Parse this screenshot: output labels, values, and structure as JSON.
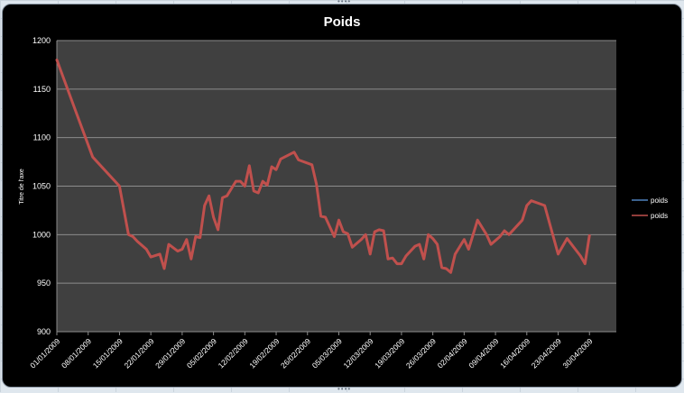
{
  "chart_data": {
    "type": "line",
    "title": "Poids",
    "ylabel": "Titre de l'axe",
    "xlabel": "",
    "ylim": [
      900,
      1200
    ],
    "yticks": [
      900,
      950,
      1000,
      1050,
      1100,
      1150,
      1200
    ],
    "xrange": [
      "01/01/2009",
      "06/05/2009"
    ],
    "xtick_labels": [
      "01/01/2009",
      "08/01/2009",
      "15/01/2009",
      "22/01/2009",
      "29/01/2009",
      "05/02/2009",
      "12/02/2009",
      "19/02/2009",
      "26/02/2009",
      "05/03/2009",
      "12/03/2009",
      "19/03/2009",
      "26/03/2009",
      "02/04/2009",
      "09/04/2009",
      "16/04/2009",
      "23/04/2009",
      "30/04/2009"
    ],
    "grid": true,
    "legend_position": "right",
    "series": [
      {
        "name": "poids",
        "color": "#4f81bd",
        "points": []
      },
      {
        "name": "poids",
        "color": "#c0504d",
        "points": [
          [
            "01/01/2009",
            1180
          ],
          [
            "05/01/2009",
            1130
          ],
          [
            "09/01/2009",
            1080
          ],
          [
            "15/01/2009",
            1050
          ],
          [
            "17/01/2009",
            1000
          ],
          [
            "18/01/2009",
            998
          ],
          [
            "19/01/2009",
            993
          ],
          [
            "21/01/2009",
            985
          ],
          [
            "22/01/2009",
            977
          ],
          [
            "24/01/2009",
            980
          ],
          [
            "25/01/2009",
            965
          ],
          [
            "26/01/2009",
            990
          ],
          [
            "28/01/2009",
            983
          ],
          [
            "29/01/2009",
            985
          ],
          [
            "30/01/2009",
            995
          ],
          [
            "31/01/2009",
            975
          ],
          [
            "01/02/2009",
            998
          ],
          [
            "02/02/2009",
            997
          ],
          [
            "03/02/2009",
            1030
          ],
          [
            "04/02/2009",
            1040
          ],
          [
            "05/02/2009",
            1018
          ],
          [
            "06/02/2009",
            1005
          ],
          [
            "07/02/2009",
            1038
          ],
          [
            "08/02/2009",
            1040
          ],
          [
            "10/02/2009",
            1055
          ],
          [
            "11/02/2009",
            1055
          ],
          [
            "12/02/2009",
            1050
          ],
          [
            "13/02/2009",
            1071
          ],
          [
            "14/02/2009",
            1045
          ],
          [
            "15/02/2009",
            1043
          ],
          [
            "16/02/2009",
            1055
          ],
          [
            "17/02/2009",
            1051
          ],
          [
            "18/02/2009",
            1070
          ],
          [
            "19/02/2009",
            1067
          ],
          [
            "20/02/2009",
            1078
          ],
          [
            "23/02/2009",
            1085
          ],
          [
            "24/02/2009",
            1077
          ],
          [
            "27/02/2009",
            1072
          ],
          [
            "28/02/2009",
            1052
          ],
          [
            "01/03/2009",
            1019
          ],
          [
            "02/03/2009",
            1018
          ],
          [
            "04/03/2009",
            998
          ],
          [
            "05/03/2009",
            1015
          ],
          [
            "06/03/2009",
            1003
          ],
          [
            "07/03/2009",
            1001
          ],
          [
            "08/03/2009",
            987
          ],
          [
            "10/03/2009",
            995
          ],
          [
            "11/03/2009",
            1000
          ],
          [
            "12/03/2009",
            980
          ],
          [
            "13/03/2009",
            1003
          ],
          [
            "14/03/2009",
            1005
          ],
          [
            "15/03/2009",
            1004
          ],
          [
            "16/03/2009",
            975
          ],
          [
            "17/03/2009",
            976
          ],
          [
            "18/03/2009",
            970
          ],
          [
            "19/03/2009",
            970
          ],
          [
            "20/03/2009",
            978
          ],
          [
            "22/03/2009",
            988
          ],
          [
            "23/03/2009",
            990
          ],
          [
            "24/03/2009",
            975
          ],
          [
            "25/03/2009",
            1000
          ],
          [
            "26/03/2009",
            996
          ],
          [
            "27/03/2009",
            990
          ],
          [
            "28/03/2009",
            966
          ],
          [
            "29/03/2009",
            965
          ],
          [
            "30/03/2009",
            961
          ],
          [
            "31/03/2009",
            980
          ],
          [
            "02/04/2009",
            995
          ],
          [
            "03/04/2009",
            985
          ],
          [
            "05/04/2009",
            1015
          ],
          [
            "07/04/2009",
            1000
          ],
          [
            "08/04/2009",
            990
          ],
          [
            "10/04/2009",
            998
          ],
          [
            "11/04/2009",
            1004
          ],
          [
            "12/04/2009",
            1000
          ],
          [
            "15/04/2009",
            1015
          ],
          [
            "16/04/2009",
            1030
          ],
          [
            "17/04/2009",
            1035
          ],
          [
            "20/04/2009",
            1030
          ],
          [
            "23/04/2009",
            980
          ],
          [
            "25/04/2009",
            996
          ],
          [
            "28/04/2009",
            978
          ],
          [
            "29/04/2009",
            970
          ],
          [
            "30/04/2009",
            999
          ]
        ]
      }
    ]
  }
}
